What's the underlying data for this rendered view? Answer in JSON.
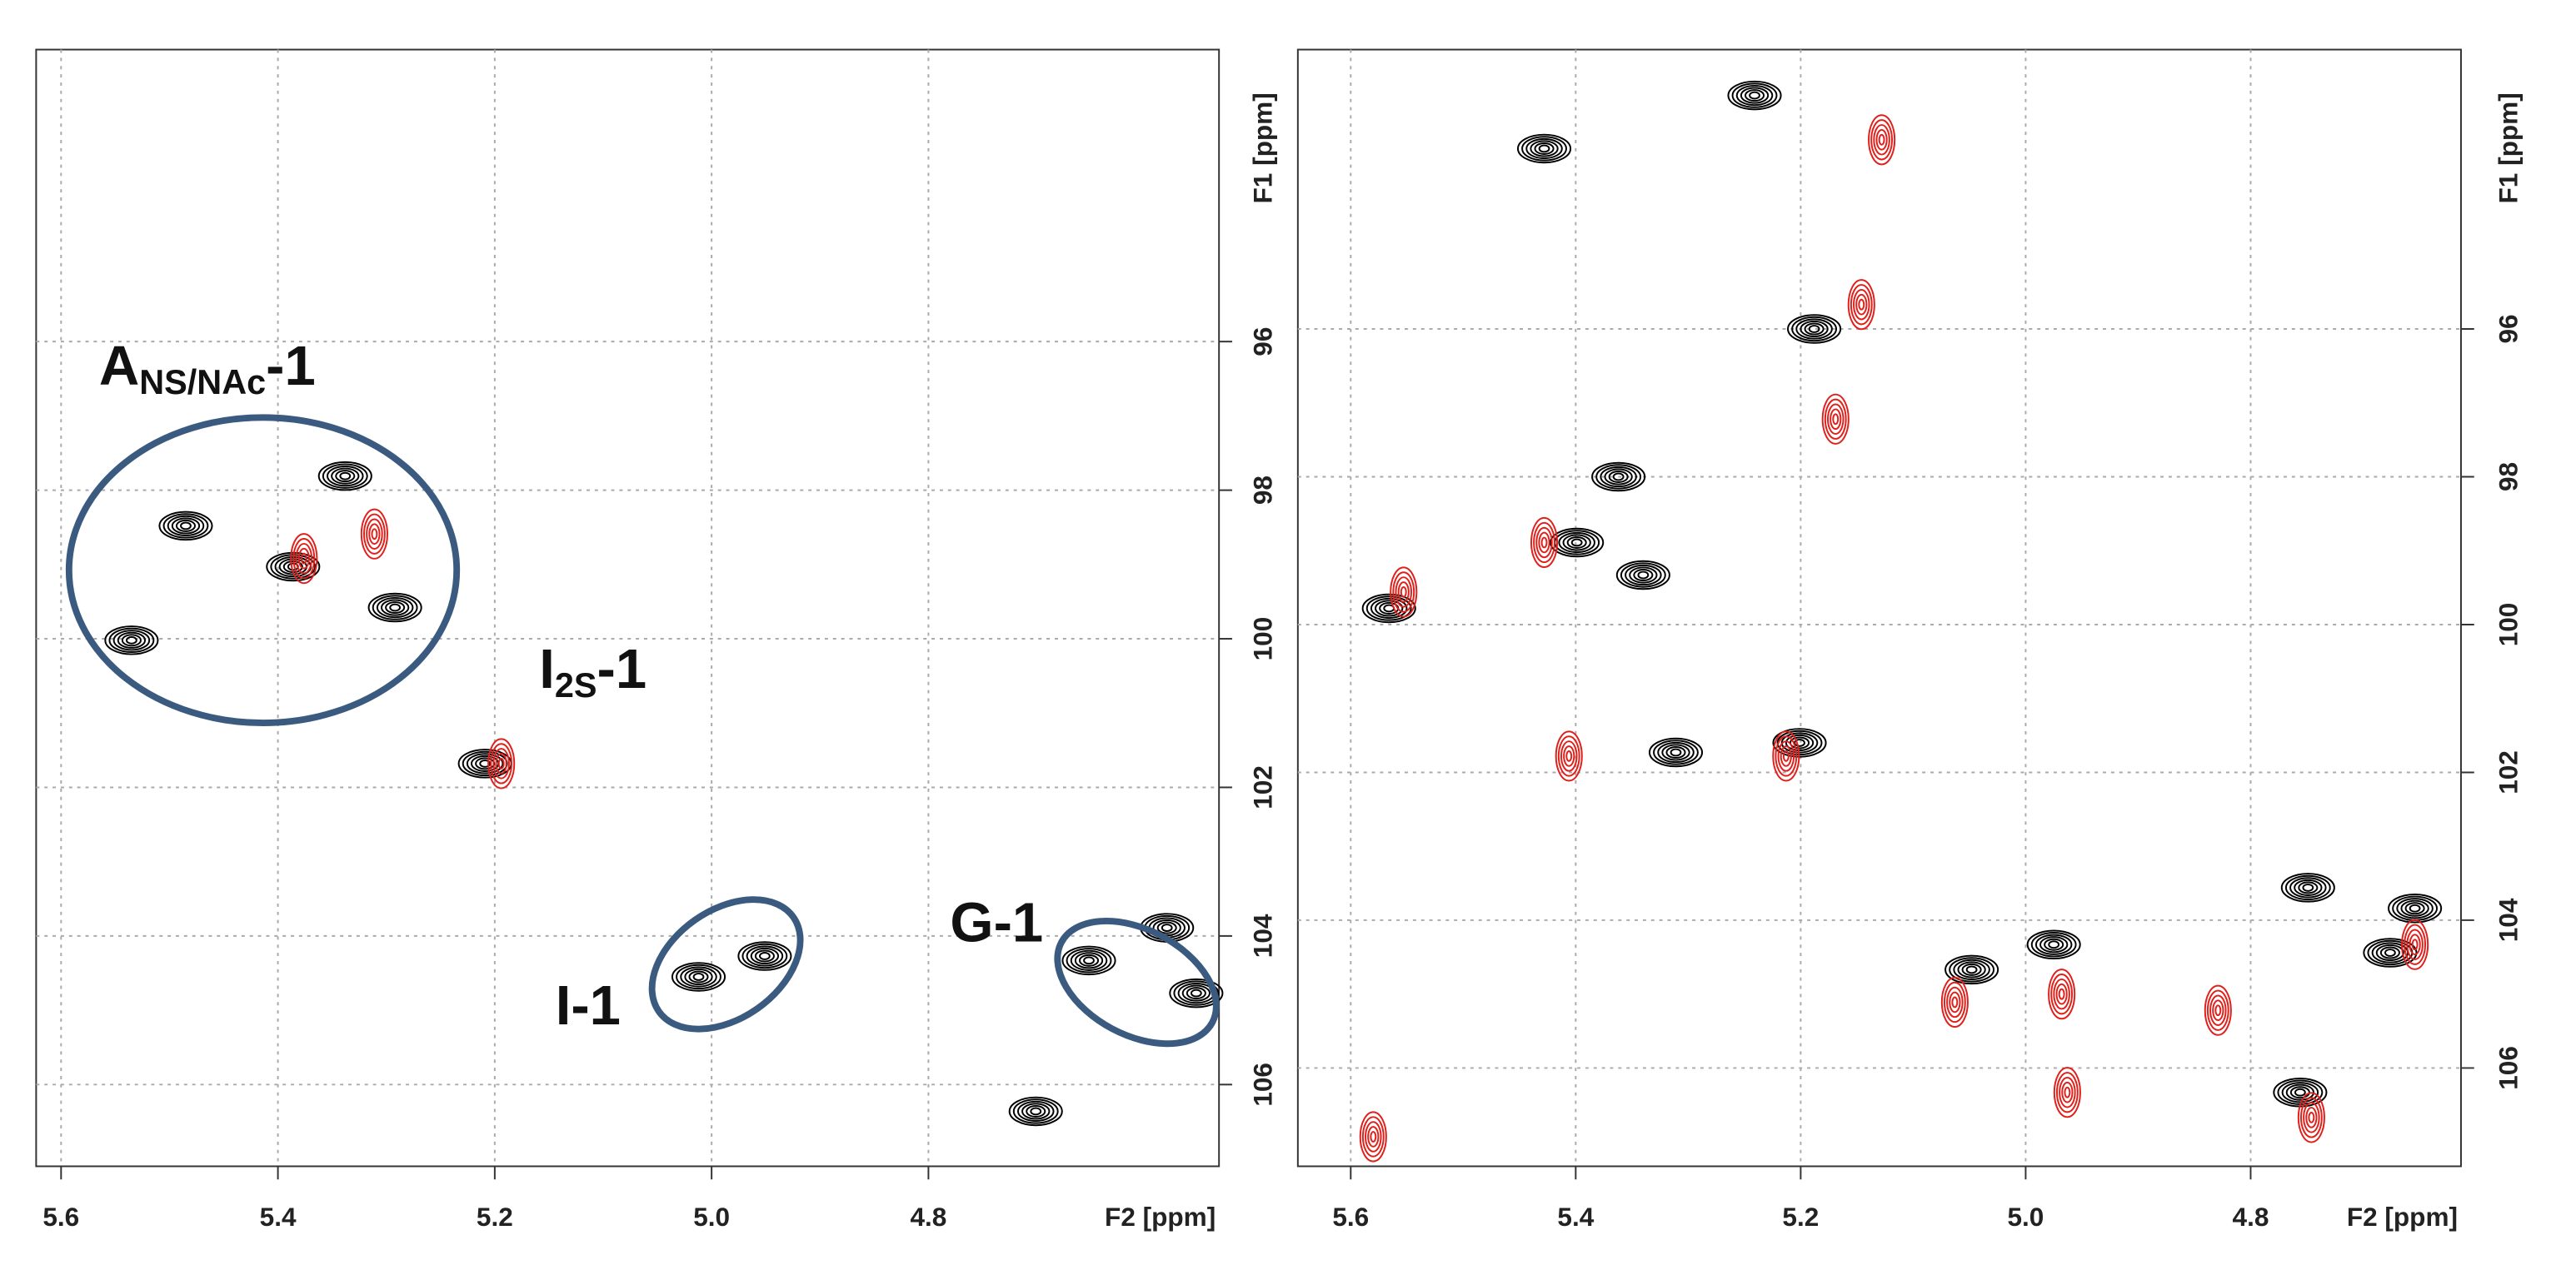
{
  "chart_data": [
    {
      "type": "contour",
      "x_label": "F2 [ppm]",
      "y_label": "F1 [ppm]",
      "xlim": [
        5.623,
        4.532
      ],
      "ylim": [
        92.07,
        107.1
      ],
      "x_inverted": true,
      "y_inverted": true,
      "grid": true,
      "xticks": [
        {
          "value": 5.6,
          "label": "5.6"
        },
        {
          "value": 5.4,
          "label": "5.4"
        },
        {
          "value": 5.2,
          "label": "5.2"
        },
        {
          "value": 5.0,
          "label": "5.0"
        },
        {
          "value": 4.8,
          "label": "4.8"
        }
      ],
      "yticks": [
        96,
        98,
        100,
        102,
        104,
        106
      ],
      "series": [
        {
          "color": "#000000",
          "x": [
            5.338,
            5.485,
            5.386,
            5.292,
            5.535,
            5.209,
            5.012,
            4.951,
            4.652,
            4.58,
            4.553,
            4.701
          ],
          "y": [
            97.81,
            98.48,
            99.03,
            99.58,
            100.02,
            101.68,
            104.55,
            104.27,
            104.33,
            103.89,
            104.77,
            106.36
          ]
        },
        {
          "color": "#e0201a",
          "x": [
            5.376,
            5.194,
            5.311
          ],
          "y": [
            98.92,
            101.68,
            98.59
          ]
        }
      ],
      "annotations": [
        {
          "text": "A",
          "sub": "NS/NAc",
          "suffix": "-1",
          "x": 5.565,
          "y": 96.38
        },
        {
          "text": "I",
          "sub": "2S",
          "suffix": "-1",
          "x": 5.159,
          "y": 100.46
        },
        {
          "text": "I-1",
          "x": 5.144,
          "y": 104.99
        },
        {
          "text": "G-1",
          "x": 4.78,
          "y": 103.87
        }
      ]
    },
    {
      "type": "contour",
      "x_label": "F2 [ppm]",
      "y_label": "F1 [ppm]",
      "xlim": [
        5.647,
        4.613
      ],
      "ylim": [
        92.22,
        107.33
      ],
      "x_inverted": true,
      "y_inverted": true,
      "grid": true,
      "xticks": [
        {
          "value": 5.6,
          "label": "5.6"
        },
        {
          "value": 5.4,
          "label": "5.4"
        },
        {
          "value": 5.2,
          "label": "5.2"
        },
        {
          "value": 5.0,
          "label": "5.0"
        },
        {
          "value": 4.8,
          "label": "4.8"
        }
      ],
      "yticks": [
        96,
        98,
        100,
        102,
        104,
        106
      ],
      "series": [
        {
          "color": "#000000",
          "x": [
            5.241,
            5.428,
            5.188,
            5.362,
            5.566,
            5.399,
            5.34,
            5.311,
            5.201,
            5.048,
            4.975,
            4.749,
            4.654,
            4.756,
            4.676
          ],
          "y": [
            92.84,
            93.56,
            96.0,
            98.0,
            99.78,
            98.89,
            99.33,
            101.73,
            101.6,
            104.67,
            104.33,
            103.56,
            103.84,
            106.33,
            104.44
          ]
        },
        {
          "color": "#e0201a",
          "x": [
            5.128,
            5.146,
            5.169,
            5.428,
            5.553,
            5.213,
            5.406,
            5.063,
            4.968,
            4.829,
            4.746,
            4.654,
            5.58,
            4.963
          ],
          "y": [
            93.44,
            95.67,
            97.22,
            98.89,
            99.56,
            101.78,
            101.78,
            105.11,
            105.0,
            105.22,
            106.67,
            104.33,
            106.93,
            106.33
          ]
        }
      ]
    }
  ]
}
